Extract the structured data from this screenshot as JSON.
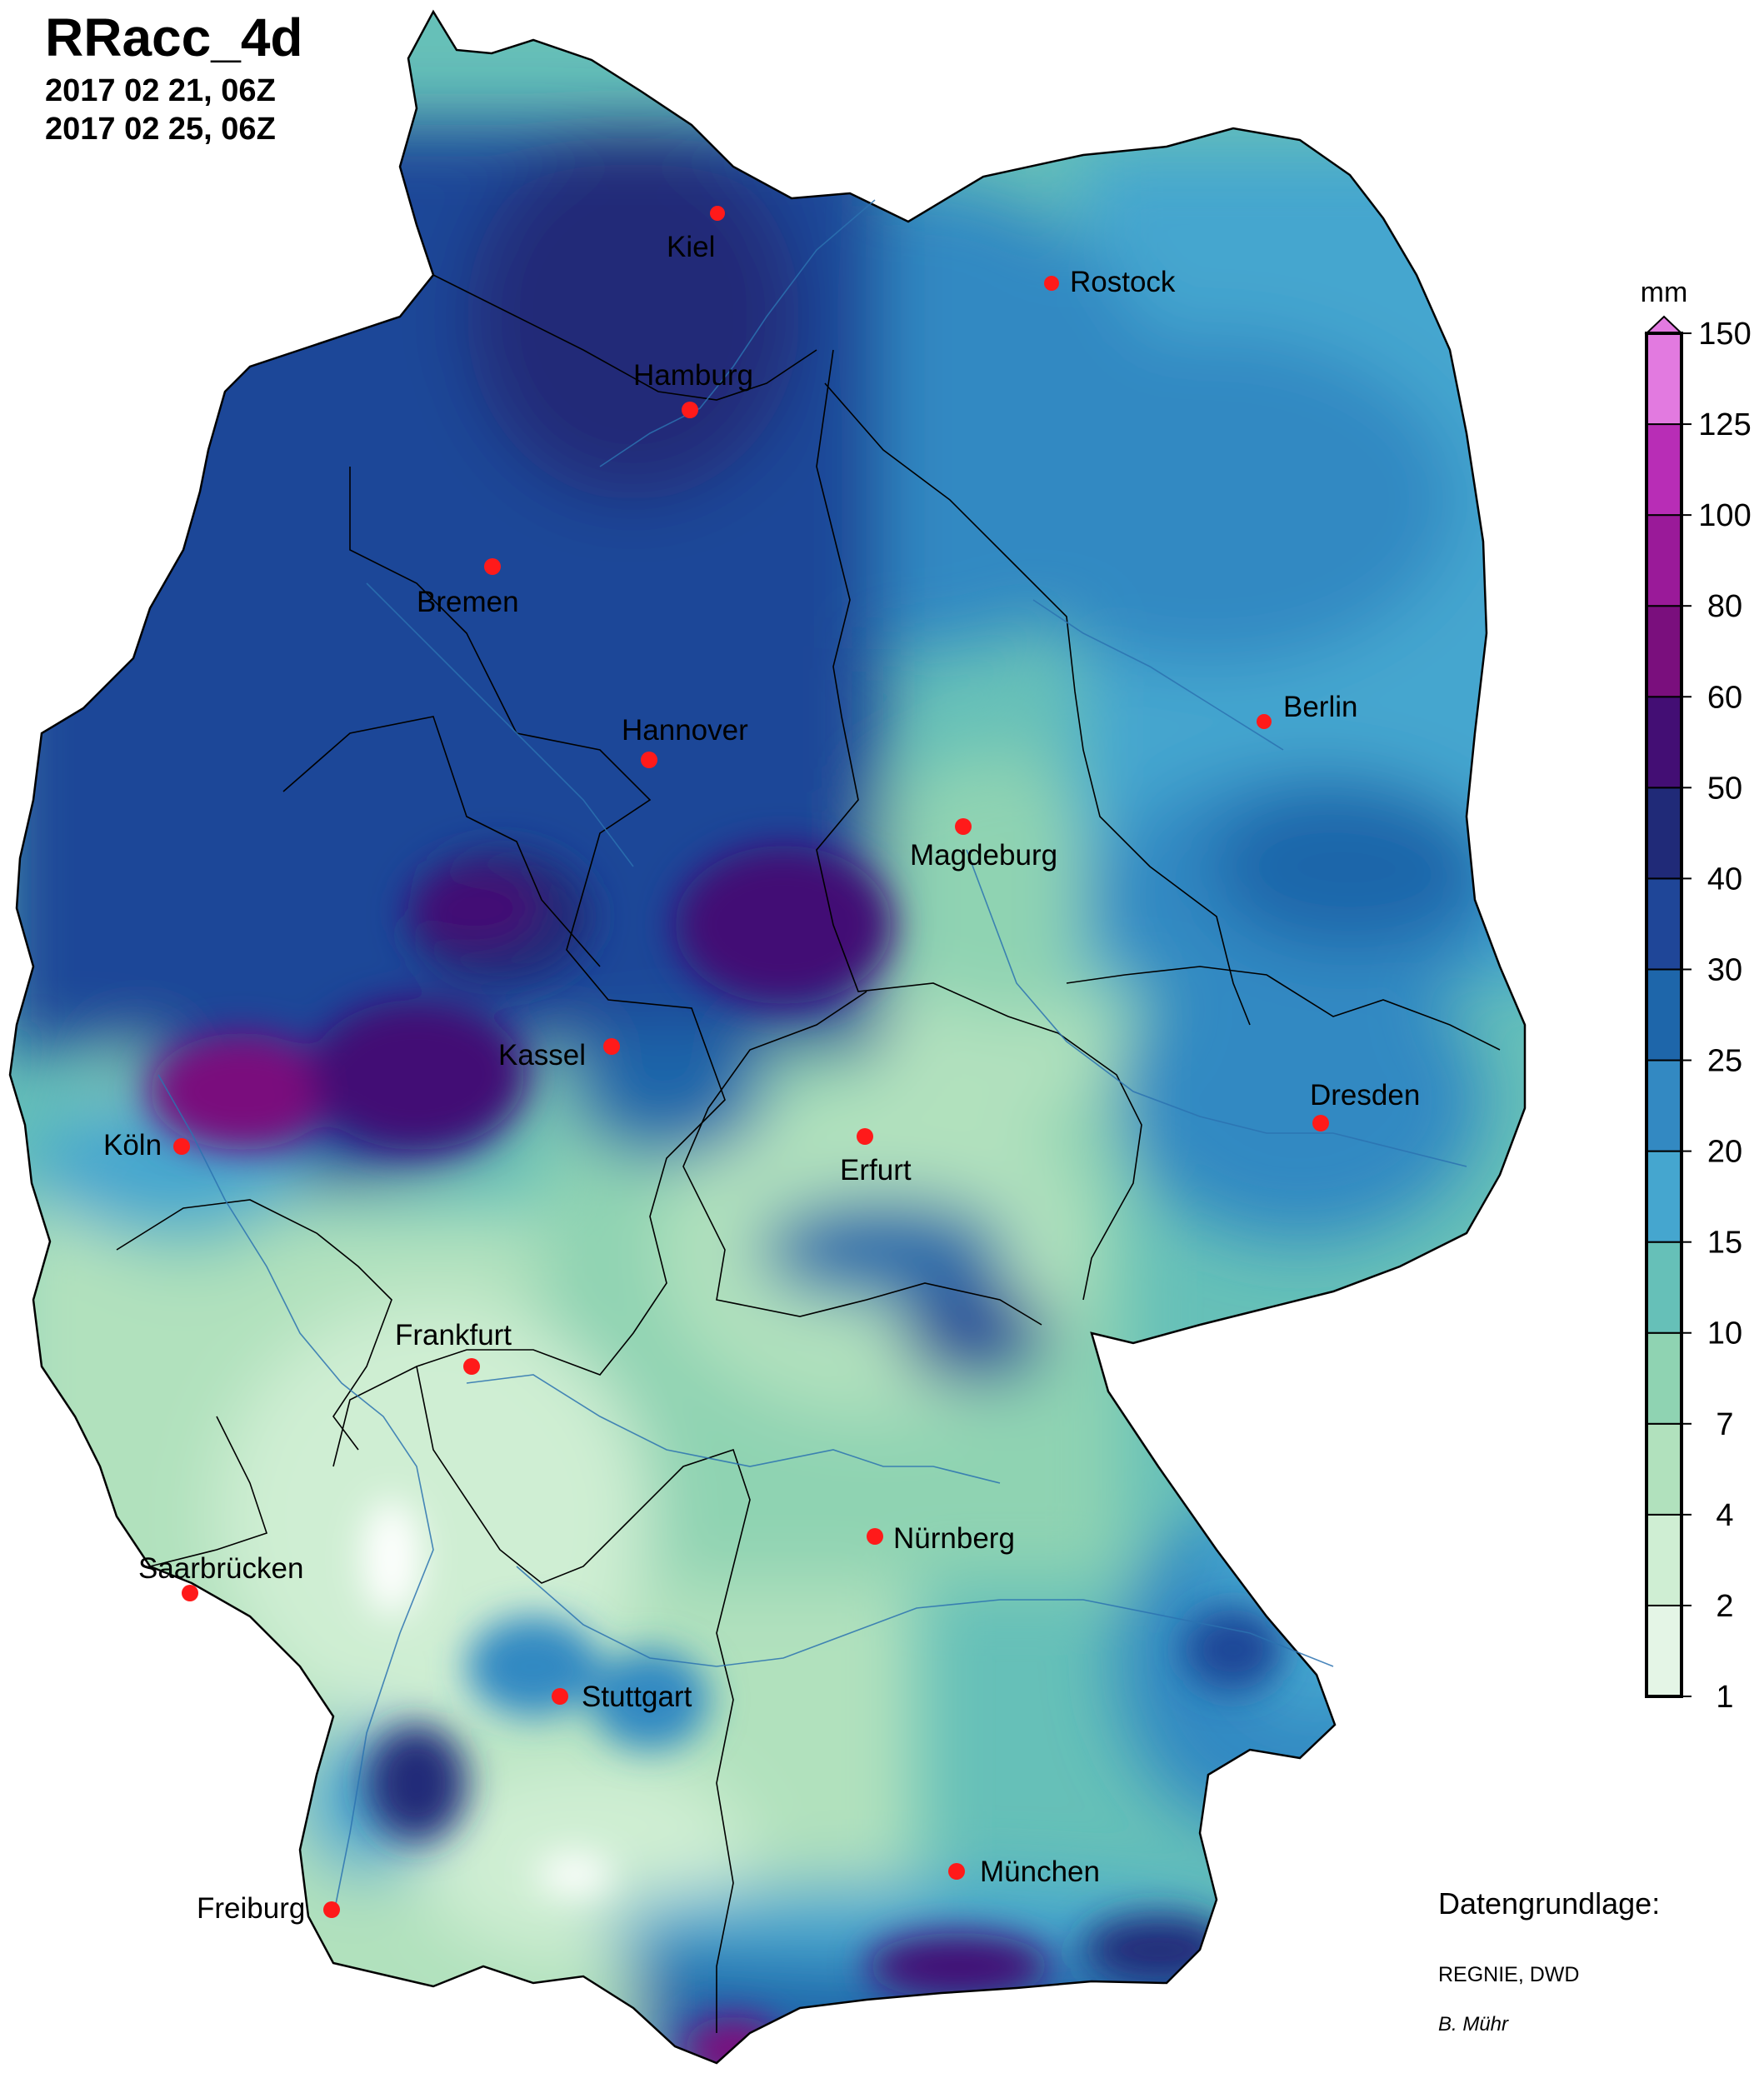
{
  "header": {
    "title": "RRacc_4d",
    "start": "2017 02 21, 06Z",
    "end": "2017 02 25, 06Z"
  },
  "legend": {
    "unit": "mm",
    "levels": [
      {
        "value": "1",
        "color": "#e4f5e6"
      },
      {
        "value": "2",
        "color": "#cfeed3"
      },
      {
        "value": "4",
        "color": "#b1e1bd"
      },
      {
        "value": "7",
        "color": "#8fd3b2"
      },
      {
        "value": "10",
        "color": "#66c0b8"
      },
      {
        "value": "15",
        "color": "#45a6cf"
      },
      {
        "value": "20",
        "color": "#3389c2"
      },
      {
        "value": "25",
        "color": "#1e66aa"
      },
      {
        "value": "30",
        "color": "#1f4698"
      },
      {
        "value": "40",
        "color": "#202a78"
      },
      {
        "value": "50",
        "color": "#430e74"
      },
      {
        "value": "60",
        "color": "#7a0f7d"
      },
      {
        "value": "80",
        "color": "#9a1a99"
      },
      {
        "value": "100",
        "color": "#b82db6"
      },
      {
        "value": "125",
        "color": "#d354d0"
      },
      {
        "value": "150",
        "color": ""
      }
    ],
    "top_color": "#e27ae0"
  },
  "cities": [
    {
      "name": "Kiel"
    },
    {
      "name": "Rostock"
    },
    {
      "name": "Hamburg"
    },
    {
      "name": "Bremen"
    },
    {
      "name": "Hannover"
    },
    {
      "name": "Berlin"
    },
    {
      "name": "Magdeburg"
    },
    {
      "name": "Kassel"
    },
    {
      "name": "Köln"
    },
    {
      "name": "Erfurt"
    },
    {
      "name": "Dresden"
    },
    {
      "name": "Frankfurt"
    },
    {
      "name": "Nürnberg"
    },
    {
      "name": "Saarbrücken"
    },
    {
      "name": "Stuttgart"
    },
    {
      "name": "München"
    },
    {
      "name": "Freiburg"
    }
  ],
  "credits": {
    "heading": "Datengrundlage:",
    "source": "REGNIE, DWD",
    "author": "B. Mühr"
  }
}
